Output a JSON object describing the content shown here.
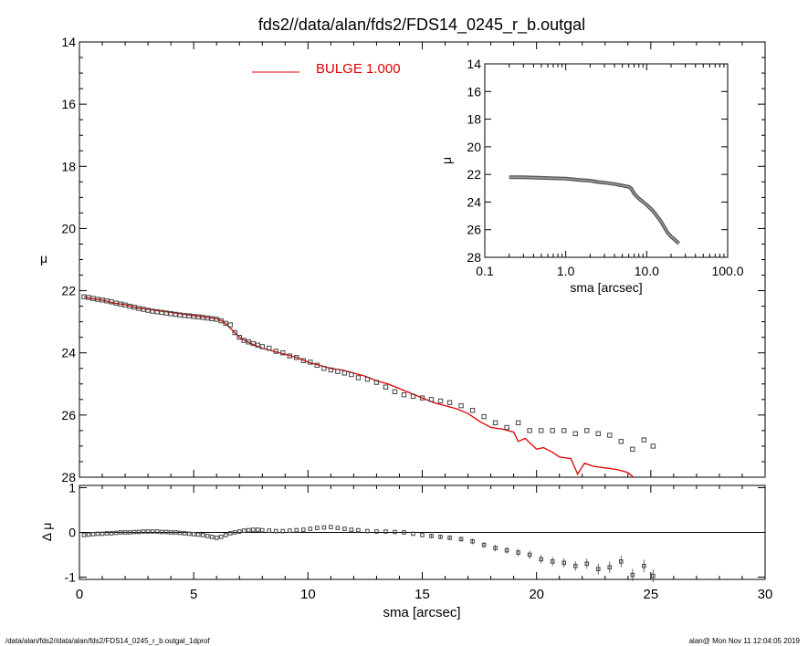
{
  "title": "fds2//data/alan/fds2/FDS14_0245_r_b.outgal",
  "footer": {
    "left": "/data/alan/fds2//data/alan/fds2/FDS14_0245_r_b.outgal_1dprof",
    "right": "alan@  Mon Nov 11 12:04:05 2019"
  },
  "colors": {
    "model": "#e00000",
    "data": "#444444",
    "axes": "#000000"
  },
  "chart_data": [
    {
      "panel": "main",
      "type": "scatter",
      "xlabel": "sma [arcsec]",
      "ylabel": "μ",
      "xlim": [
        0,
        30
      ],
      "ylim": [
        28,
        14
      ],
      "y_inverted": true,
      "x_ticks": [
        0,
        5,
        10,
        15,
        20,
        25,
        30
      ],
      "y_ticks": [
        14,
        16,
        18,
        20,
        22,
        24,
        26,
        28
      ],
      "legend": {
        "label": "BULGE  1.000",
        "placement": "top-left"
      },
      "series": [
        {
          "name": "BULGE  1.000",
          "style": "line",
          "x": [
            0.2,
            0.5,
            1.0,
            1.5,
            2.0,
            2.5,
            3.0,
            3.5,
            4.0,
            4.5,
            5.0,
            5.5,
            6.0,
            6.3,
            6.6,
            7.0,
            7.5,
            8.0,
            8.5,
            9.0,
            9.5,
            10.0,
            10.5,
            11.0,
            11.5,
            12.0,
            12.5,
            13.0,
            13.5,
            14.0,
            14.5,
            15.0,
            15.5,
            16.0,
            16.5,
            17.0,
            17.5,
            18.0,
            18.5,
            19.0,
            19.2,
            19.5,
            20.0,
            20.3,
            20.7,
            21.0,
            21.5,
            21.8,
            22.1,
            22.5,
            23.0,
            23.5,
            24.0,
            24.4
          ],
          "y": [
            22.2,
            22.25,
            22.3,
            22.4,
            22.45,
            22.55,
            22.6,
            22.65,
            22.7,
            22.75,
            22.8,
            22.85,
            22.9,
            23.0,
            23.2,
            23.5,
            23.7,
            23.85,
            23.95,
            24.05,
            24.15,
            24.3,
            24.4,
            24.5,
            24.55,
            24.65,
            24.75,
            24.9,
            25.0,
            25.15,
            25.3,
            25.45,
            25.6,
            25.7,
            25.8,
            25.95,
            26.2,
            26.4,
            26.45,
            26.55,
            26.85,
            26.75,
            27.1,
            27.05,
            27.2,
            27.35,
            27.4,
            27.9,
            27.55,
            27.65,
            27.7,
            27.75,
            27.85,
            28.1
          ]
        },
        {
          "name": "",
          "style": "open-square",
          "x": [
            0.2,
            0.4,
            0.6,
            0.8,
            1.0,
            1.2,
            1.4,
            1.6,
            1.8,
            2.0,
            2.2,
            2.4,
            2.6,
            2.8,
            3.0,
            3.2,
            3.4,
            3.6,
            3.8,
            4.0,
            4.2,
            4.4,
            4.6,
            4.8,
            5.0,
            5.2,
            5.4,
            5.6,
            5.8,
            6.0,
            6.2,
            6.4,
            6.6,
            6.8,
            7.0,
            7.2,
            7.4,
            7.6,
            7.8,
            8.0,
            8.3,
            8.6,
            8.9,
            9.2,
            9.5,
            9.8,
            10.1,
            10.4,
            10.7,
            11.0,
            11.3,
            11.6,
            11.9,
            12.2,
            12.6,
            13.0,
            13.4,
            13.8,
            14.2,
            14.6,
            15.0,
            15.4,
            15.8,
            16.2,
            16.7,
            17.2,
            17.7,
            18.2,
            18.7,
            19.2,
            19.7,
            20.2,
            20.7,
            21.2,
            21.7,
            22.2,
            22.7,
            23.2,
            23.7,
            24.2,
            24.7,
            25.1
          ],
          "y": [
            22.2,
            22.22,
            22.25,
            22.28,
            22.3,
            22.33,
            22.36,
            22.4,
            22.43,
            22.46,
            22.5,
            22.53,
            22.57,
            22.6,
            22.63,
            22.66,
            22.68,
            22.7,
            22.72,
            22.74,
            22.76,
            22.78,
            22.8,
            22.81,
            22.83,
            22.84,
            22.86,
            22.88,
            22.9,
            22.92,
            22.97,
            23.05,
            23.1,
            23.35,
            23.5,
            23.6,
            23.65,
            23.7,
            23.75,
            23.8,
            23.85,
            23.95,
            24.0,
            24.1,
            24.15,
            24.25,
            24.3,
            24.4,
            24.5,
            24.55,
            24.6,
            24.65,
            24.7,
            24.8,
            24.85,
            24.95,
            25.1,
            25.25,
            25.35,
            25.4,
            25.45,
            25.5,
            25.55,
            25.6,
            25.7,
            25.85,
            26.05,
            26.25,
            26.4,
            26.25,
            26.5,
            26.5,
            26.5,
            26.5,
            26.6,
            26.5,
            26.6,
            26.65,
            26.85,
            27.1,
            26.8,
            27.0
          ]
        }
      ]
    },
    {
      "panel": "inset",
      "type": "scatter",
      "xlabel": "sma [arcsec]",
      "ylabel": "μ",
      "x_scale": "log",
      "xlim": [
        0.1,
        100.0
      ],
      "ylim": [
        28,
        14
      ],
      "y_inverted": true,
      "x_ticks": [
        0.1,
        1.0,
        10.0,
        100.0
      ],
      "x_tick_labels": [
        "0.1",
        "1.0",
        "10.0",
        "100.0"
      ],
      "y_ticks": [
        14,
        16,
        18,
        20,
        22,
        24,
        26,
        28
      ],
      "series": [
        {
          "name": "",
          "style": "thick-line",
          "x": [
            0.2,
            0.3,
            0.5,
            0.7,
            1.0,
            1.5,
            2.0,
            2.5,
            3.0,
            4.0,
            5.0,
            6.0,
            6.5,
            7.0,
            8.0,
            10.0,
            12.0,
            15.0,
            18.0,
            20.0,
            22.0,
            25.0
          ],
          "y": [
            22.2,
            22.2,
            22.25,
            22.28,
            22.3,
            22.4,
            22.45,
            22.55,
            22.6,
            22.7,
            22.8,
            22.9,
            23.05,
            23.4,
            23.75,
            24.2,
            24.65,
            25.4,
            26.2,
            26.5,
            26.7,
            27.0
          ]
        }
      ]
    },
    {
      "panel": "residual",
      "type": "scatter",
      "xlabel": "sma [arcsec]",
      "ylabel": "Δ μ",
      "xlim": [
        0,
        30
      ],
      "ylim": [
        -1.05,
        1.05
      ],
      "x_ticks": [
        0,
        5,
        10,
        15,
        20,
        25,
        30
      ],
      "x_tick_labels": [
        "0",
        "5",
        "10",
        "15",
        "20",
        "25",
        "30"
      ],
      "y_ticks": [
        -1,
        0,
        1
      ],
      "zero_line": true,
      "series": [
        {
          "name": "",
          "style": "open-square",
          "x": [
            0.2,
            0.4,
            0.6,
            0.8,
            1.0,
            1.2,
            1.4,
            1.6,
            1.8,
            2.0,
            2.2,
            2.4,
            2.6,
            2.8,
            3.0,
            3.2,
            3.4,
            3.6,
            3.8,
            4.0,
            4.2,
            4.4,
            4.6,
            4.8,
            5.0,
            5.2,
            5.4,
            5.6,
            5.8,
            6.0,
            6.2,
            6.4,
            6.6,
            6.8,
            7.0,
            7.2,
            7.4,
            7.6,
            7.8,
            8.0,
            8.3,
            8.6,
            8.9,
            9.2,
            9.5,
            9.8,
            10.1,
            10.4,
            10.7,
            11.0,
            11.3,
            11.6,
            11.9,
            12.2,
            12.6,
            13.0,
            13.4,
            13.8,
            14.2,
            14.6,
            15.0,
            15.4,
            15.8,
            16.2,
            16.7,
            17.2,
            17.7,
            18.2,
            18.7,
            19.2,
            19.7,
            20.2,
            20.7,
            21.2,
            21.7,
            22.2,
            22.7,
            23.2,
            23.7,
            24.2,
            24.7,
            25.1
          ],
          "y": [
            -0.06,
            -0.05,
            -0.04,
            -0.03,
            -0.03,
            -0.02,
            -0.02,
            -0.01,
            0.0,
            0.0,
            0.0,
            0.01,
            0.01,
            0.02,
            0.02,
            0.02,
            0.02,
            0.01,
            0.01,
            0.0,
            0.0,
            -0.01,
            -0.02,
            -0.03,
            -0.04,
            -0.05,
            -0.06,
            -0.08,
            -0.1,
            -0.12,
            -0.1,
            -0.06,
            -0.02,
            0.0,
            0.02,
            0.04,
            0.05,
            0.06,
            0.06,
            0.05,
            0.04,
            0.03,
            0.03,
            0.04,
            0.05,
            0.06,
            0.08,
            0.1,
            0.11,
            0.12,
            0.1,
            0.08,
            0.06,
            0.05,
            0.03,
            0.02,
            0.02,
            0.01,
            0.0,
            -0.03,
            -0.06,
            -0.08,
            -0.1,
            -0.12,
            -0.15,
            -0.2,
            -0.28,
            -0.35,
            -0.4,
            -0.45,
            -0.5,
            -0.6,
            -0.65,
            -0.68,
            -0.75,
            -0.7,
            -0.82,
            -0.78,
            -0.65,
            -0.95,
            -0.75,
            -0.97
          ]
        }
      ]
    }
  ]
}
